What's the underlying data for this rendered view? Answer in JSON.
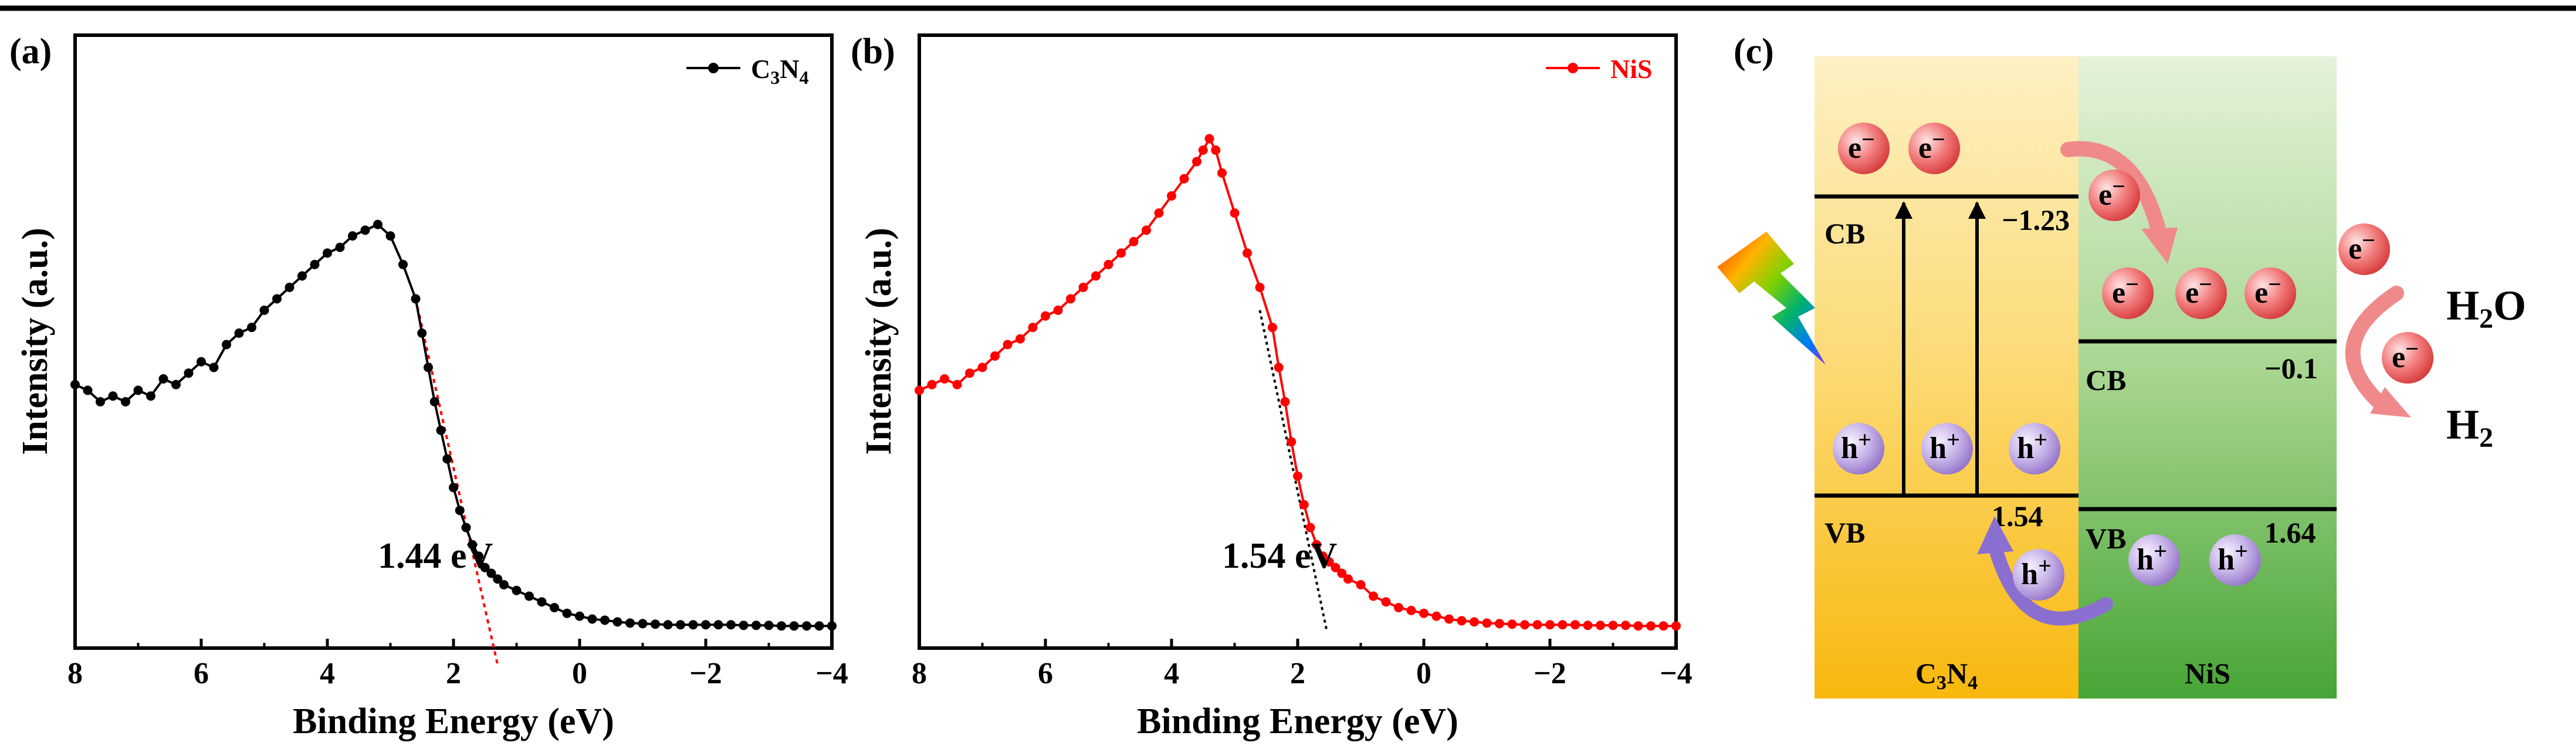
{
  "colors": {
    "c3n4_series": "#000000",
    "nis_series": "#ff0000",
    "c3n4_band_light": "#fbecb6",
    "c3n4_band_dark": "#f9bd1b",
    "nis_band_light": "#e2f0d8",
    "nis_band_dark": "#4ea838",
    "electron": "#e24a4a",
    "hole": "#a58cd0",
    "electron_arrow": "#f08a8a",
    "hole_arrow": "#8a6fd0"
  },
  "panels": {
    "a": {
      "label": "(a)"
    },
    "b": {
      "label": "(b)"
    },
    "c": {
      "label": "(c)"
    }
  },
  "chart_data": [
    {
      "id": "a",
      "type": "line",
      "title": "",
      "xlabel": "Binding Energy (eV)",
      "ylabel": "Intensity (a.u.)",
      "xlim": [
        8,
        -4
      ],
      "ylim": [
        0,
        1
      ],
      "xticks": [
        8,
        6,
        4,
        2,
        0,
        -2,
        -4
      ],
      "xtick_labels": [
        "8",
        "6",
        "4",
        "2",
        "0",
        "−2",
        "−4"
      ],
      "legend": {
        "label": "C3N4",
        "base": "C",
        "sub1": "3",
        "mid": "N",
        "sub2": "4",
        "position": "top-right"
      },
      "series": [
        {
          "name": "C3N4",
          "color": "#000000",
          "x": [
            8.0,
            7.8,
            7.6,
            7.4,
            7.2,
            7.0,
            6.8,
            6.6,
            6.4,
            6.2,
            6.0,
            5.8,
            5.6,
            5.4,
            5.2,
            5.0,
            4.8,
            4.6,
            4.4,
            4.2,
            4.0,
            3.8,
            3.6,
            3.4,
            3.2,
            3.0,
            2.8,
            2.6,
            2.5,
            2.4,
            2.3,
            2.2,
            2.1,
            2.0,
            1.9,
            1.8,
            1.7,
            1.6,
            1.5,
            1.4,
            1.3,
            1.2,
            1.0,
            0.8,
            0.6,
            0.4,
            0.2,
            0.0,
            -0.2,
            -0.4,
            -0.6,
            -0.8,
            -1.0,
            -1.2,
            -1.4,
            -1.6,
            -1.8,
            -2.0,
            -2.2,
            -2.4,
            -2.6,
            -2.8,
            -3.0,
            -3.2,
            -3.4,
            -3.6,
            -3.8,
            -4.0
          ],
          "y": [
            0.43,
            0.42,
            0.4,
            0.41,
            0.4,
            0.42,
            0.41,
            0.44,
            0.43,
            0.45,
            0.47,
            0.46,
            0.5,
            0.52,
            0.53,
            0.56,
            0.58,
            0.6,
            0.62,
            0.64,
            0.66,
            0.67,
            0.69,
            0.7,
            0.71,
            0.69,
            0.64,
            0.58,
            0.52,
            0.46,
            0.4,
            0.35,
            0.3,
            0.25,
            0.21,
            0.18,
            0.15,
            0.13,
            0.11,
            0.1,
            0.09,
            0.08,
            0.07,
            0.06,
            0.05,
            0.04,
            0.03,
            0.025,
            0.02,
            0.018,
            0.015,
            0.013,
            0.012,
            0.011,
            0.01,
            0.01,
            0.01,
            0.01,
            0.01,
            0.01,
            0.009,
            0.009,
            0.009,
            0.008,
            0.008,
            0.008,
            0.008,
            0.008
          ]
        }
      ],
      "fit_line": {
        "x": [
          2.6,
          1.3
        ],
        "y": [
          0.58,
          -0.06
        ],
        "color": "#ff0000"
      },
      "annotation": {
        "text": "1.44 eV",
        "x": 3.2,
        "y": 0.11
      }
    },
    {
      "id": "b",
      "type": "line",
      "title": "",
      "xlabel": "Binding Energy (eV)",
      "ylabel": "Intensity (a.u.)",
      "xlim": [
        8,
        -4
      ],
      "ylim": [
        0,
        1
      ],
      "xticks": [
        8,
        6,
        4,
        2,
        0,
        -2,
        -4
      ],
      "xtick_labels": [
        "8",
        "6",
        "4",
        "2",
        "0",
        "−2",
        "−4"
      ],
      "legend": {
        "label": "NiS",
        "position": "top-right"
      },
      "series": [
        {
          "name": "NiS",
          "color": "#ff0000",
          "x": [
            8.0,
            7.8,
            7.6,
            7.4,
            7.2,
            7.0,
            6.8,
            6.6,
            6.4,
            6.2,
            6.0,
            5.8,
            5.6,
            5.4,
            5.2,
            5.0,
            4.8,
            4.6,
            4.4,
            4.2,
            4.0,
            3.8,
            3.6,
            3.5,
            3.4,
            3.3,
            3.2,
            3.0,
            2.8,
            2.6,
            2.4,
            2.3,
            2.2,
            2.1,
            2.0,
            1.9,
            1.8,
            1.7,
            1.6,
            1.5,
            1.4,
            1.3,
            1.2,
            1.0,
            0.8,
            0.6,
            0.4,
            0.2,
            0.0,
            -0.2,
            -0.4,
            -0.6,
            -0.8,
            -1.0,
            -1.2,
            -1.4,
            -1.6,
            -1.8,
            -2.0,
            -2.2,
            -2.4,
            -2.6,
            -2.8,
            -3.0,
            -3.2,
            -3.4,
            -3.6,
            -3.8,
            -4.0
          ],
          "y": [
            0.42,
            0.43,
            0.44,
            0.43,
            0.45,
            0.46,
            0.48,
            0.5,
            0.51,
            0.53,
            0.55,
            0.56,
            0.58,
            0.6,
            0.62,
            0.64,
            0.66,
            0.68,
            0.7,
            0.73,
            0.76,
            0.79,
            0.82,
            0.84,
            0.86,
            0.84,
            0.8,
            0.73,
            0.66,
            0.6,
            0.53,
            0.46,
            0.4,
            0.33,
            0.27,
            0.22,
            0.18,
            0.15,
            0.13,
            0.12,
            0.11,
            0.1,
            0.09,
            0.08,
            0.06,
            0.05,
            0.04,
            0.035,
            0.03,
            0.025,
            0.02,
            0.017,
            0.015,
            0.013,
            0.012,
            0.011,
            0.01,
            0.01,
            0.01,
            0.01,
            0.01,
            0.009,
            0.009,
            0.009,
            0.009,
            0.008,
            0.008,
            0.008,
            0.008
          ]
        }
      ],
      "fit_line": {
        "x": [
          2.6,
          1.54
        ],
        "y": [
          0.56,
          0.0
        ],
        "color": "#000000"
      },
      "annotation": {
        "text": "1.54 eV",
        "x": 3.2,
        "y": 0.11
      }
    }
  ],
  "diagram": {
    "c3n4_label": {
      "base": "C",
      "sub1": "3",
      "mid": "N",
      "sub2": "4"
    },
    "nis_label": "NiS",
    "c3n4_cb_label": "CB",
    "c3n4_vb_label": "VB",
    "nis_cb_label": "CB",
    "nis_vb_label": "VB",
    "c3n4_cb_value": "−1.23",
    "c3n4_vb_value": "1.54",
    "nis_cb_value": "−0.1",
    "nis_vb_value": "1.64",
    "electron_symbol": "e",
    "electron_sign": "−",
    "hole_symbol": "h",
    "hole_sign": "+",
    "h2o": {
      "base": "H",
      "sub": "2",
      "tail": "O"
    },
    "h2": {
      "base": "H",
      "sub": "2"
    }
  }
}
